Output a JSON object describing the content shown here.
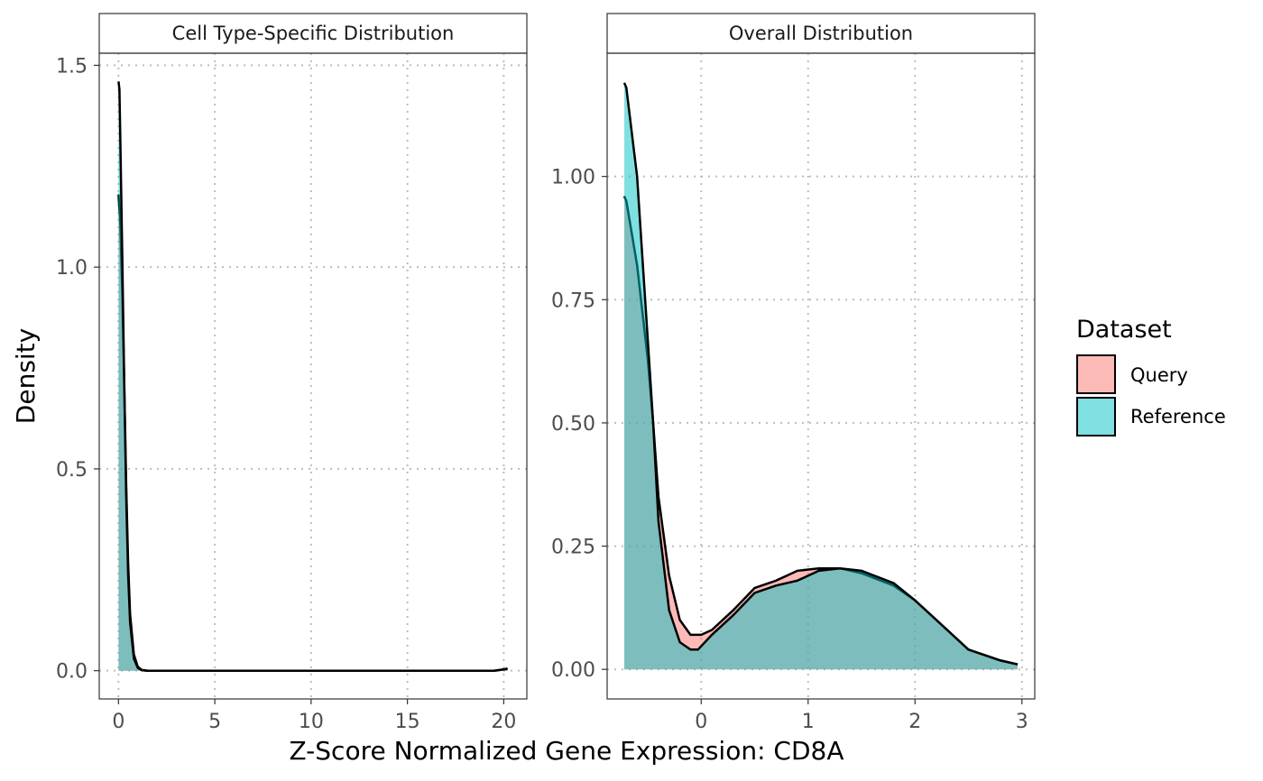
{
  "chart_data": {
    "type": "area",
    "xlabel": "Z-Score Normalized Gene Expression: CD8A",
    "ylabel": "Density",
    "legend": {
      "title": "Dataset",
      "placement": "right",
      "entries": [
        {
          "label": "Query",
          "color": "#F8766D"
        },
        {
          "label": "Reference",
          "color": "#00BFC4"
        }
      ]
    },
    "grid": true,
    "panels": [
      {
        "title": "Cell Type-Specific Distribution",
        "xlim": [
          -1,
          21.2
        ],
        "ylim": [
          -0.07,
          1.53
        ],
        "xticks": [
          0,
          5,
          10,
          15,
          20
        ],
        "xtick_labels": [
          "0",
          "5",
          "10",
          "15",
          "20"
        ],
        "yticks": [
          0.0,
          0.5,
          1.0,
          1.5
        ],
        "ytick_labels": [
          "0.0",
          "0.5",
          "1.0",
          "1.5"
        ],
        "series": [
          {
            "name": "Query",
            "x": [
              0.0,
              0.1,
              0.2,
              0.3,
              0.4,
              0.5,
              0.6,
              0.8,
              1.0,
              1.2,
              1.5,
              2.0,
              5.0,
              10.0,
              15.0,
              19.5,
              20.0,
              20.2
            ],
            "y": [
              1.18,
              1.1,
              0.93,
              0.7,
              0.46,
              0.27,
              0.14,
              0.04,
              0.01,
              0.002,
              0.0,
              0.0,
              0.0,
              0.0,
              0.0,
              0.0,
              0.003,
              0.005
            ]
          },
          {
            "name": "Reference",
            "x": [
              0.0,
              0.05,
              0.1,
              0.2,
              0.3,
              0.4,
              0.5,
              0.6,
              0.8,
              1.0,
              1.2,
              1.5,
              2.0,
              5.0,
              10.0,
              15.0,
              19.5,
              20.0,
              20.2
            ],
            "y": [
              1.46,
              1.44,
              1.3,
              1.02,
              0.7,
              0.43,
              0.24,
              0.12,
              0.03,
              0.007,
              0.001,
              0.0,
              0.0,
              0.0,
              0.0,
              0.0,
              0.0,
              0.003,
              0.005
            ]
          }
        ]
      },
      {
        "title": "Overall Distribution",
        "xlim": [
          -0.88,
          3.12
        ],
        "ylim": [
          -0.06,
          1.25
        ],
        "xticks": [
          0,
          1,
          2,
          3
        ],
        "xtick_labels": [
          "0",
          "1",
          "2",
          "3"
        ],
        "yticks": [
          0.0,
          0.25,
          0.5,
          0.75,
          1.0
        ],
        "ytick_labels": [
          "0.00",
          "0.25",
          "0.50",
          "0.75",
          "1.00"
        ],
        "series": [
          {
            "name": "Query",
            "x": [
              -0.72,
              -0.7,
              -0.6,
              -0.5,
              -0.45,
              -0.4,
              -0.3,
              -0.2,
              -0.1,
              0.0,
              0.1,
              0.3,
              0.5,
              0.7,
              0.9,
              1.1,
              1.3,
              1.5,
              1.8,
              2.0,
              2.2,
              2.5,
              2.8,
              2.96
            ],
            "y": [
              0.96,
              0.95,
              0.82,
              0.63,
              0.5,
              0.35,
              0.19,
              0.1,
              0.07,
              0.07,
              0.08,
              0.12,
              0.165,
              0.18,
              0.2,
              0.205,
              0.205,
              0.195,
              0.17,
              0.14,
              0.1,
              0.04,
              0.018,
              0.01
            ]
          },
          {
            "name": "Reference",
            "x": [
              -0.72,
              -0.7,
              -0.6,
              -0.5,
              -0.45,
              -0.4,
              -0.3,
              -0.2,
              -0.1,
              -0.03,
              0.1,
              0.3,
              0.5,
              0.7,
              0.9,
              1.1,
              1.3,
              1.5,
              1.8,
              2.0,
              2.2,
              2.5,
              2.8,
              2.96
            ],
            "y": [
              1.19,
              1.18,
              1.0,
              0.67,
              0.5,
              0.3,
              0.12,
              0.055,
              0.04,
              0.04,
              0.07,
              0.11,
              0.155,
              0.17,
              0.18,
              0.2,
              0.205,
              0.2,
              0.175,
              0.14,
              0.1,
              0.04,
              0.018,
              0.01
            ]
          }
        ]
      }
    ]
  }
}
